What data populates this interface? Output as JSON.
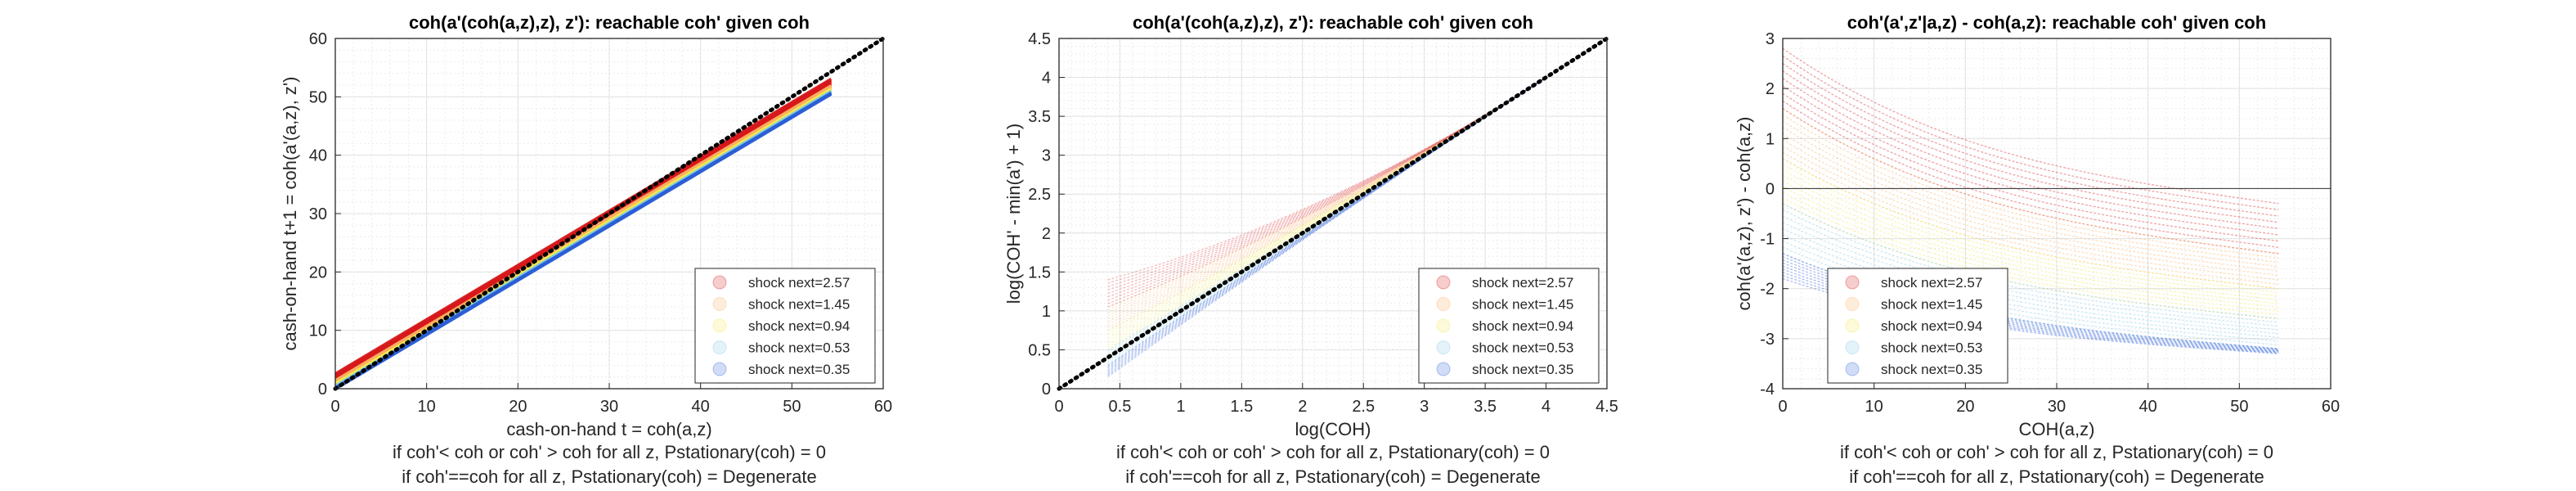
{
  "chart_data": [
    {
      "type": "scatter",
      "title": "coh(a'(coh(a,z),z), z'): reachable coh' given coh",
      "xlabel": "cash-on-hand t = coh(a,z)",
      "ylabel": "cash-on-hand t+1 = coh(a'(a,z), z')",
      "footnote_1": "if coh'< coh or coh' > coh for all z, Pstationary(coh) = 0",
      "footnote_2": "if coh'==coh for all z, Pstationary(coh) = Degenerate",
      "xlim": [
        0,
        60
      ],
      "ylim": [
        0,
        60
      ],
      "xticks": [
        "0",
        "10",
        "20",
        "30",
        "40",
        "50",
        "60"
      ],
      "yticks": [
        "0",
        "10",
        "20",
        "30",
        "40",
        "50",
        "60"
      ],
      "grid": true,
      "legend_position": "bottom-right",
      "reference_line": "45-degree dotted line y = x",
      "x_range_data": [
        0,
        54.3
      ],
      "series": [
        {
          "name": "shock next=2.57",
          "color": "#d7191c",
          "slope": 0.93,
          "intercept": 2.6
        },
        {
          "name": "shock next=1.45",
          "color": "#fdae61",
          "slope": 0.93,
          "intercept": 1.45
        },
        {
          "name": "shock next=0.94",
          "color": "#f2e94e",
          "slope": 0.93,
          "intercept": 0.9
        },
        {
          "name": "shock next=0.53",
          "color": "#7ec8e3",
          "slope": 0.93,
          "intercept": 0.5
        },
        {
          "name": "shock next=0.35",
          "color": "#2c5fd6",
          "slope": 0.93,
          "intercept": 0.2
        }
      ]
    },
    {
      "type": "scatter",
      "title": "coh(a'(coh(a,z),z), z'): reachable coh' given coh",
      "xlabel": "log(COH)",
      "ylabel": "log(COH' - min(a') + 1)",
      "footnote_1": "if coh'< coh or coh' > coh for all z, Pstationary(coh) = 0",
      "footnote_2": "if coh'==coh for all z, Pstationary(coh) = Degenerate",
      "xlim": [
        0,
        4.5
      ],
      "ylim": [
        0,
        4.5
      ],
      "xticks": [
        "0",
        "0.5",
        "1",
        "1.5",
        "2",
        "2.5",
        "3",
        "3.5",
        "4",
        "4.5"
      ],
      "yticks": [
        "0",
        "0.5",
        "1",
        "1.5",
        "2",
        "2.5",
        "3",
        "3.5",
        "4",
        "4.5"
      ],
      "grid": true,
      "legend_position": "bottom-right",
      "reference_line": "45-degree dotted line y = x",
      "x_range_data": [
        0.4,
        4.0
      ],
      "series": [
        {
          "name": "shock next=2.57",
          "color": "#d7191c",
          "y_at_x_min": 1.45
        },
        {
          "name": "shock next=1.45",
          "color": "#fdae61",
          "y_at_x_min": 1.1
        },
        {
          "name": "shock next=0.94",
          "color": "#f2e94e",
          "y_at_x_min": 0.8
        },
        {
          "name": "shock next=0.53",
          "color": "#7ec8e3",
          "y_at_x_min": 0.55
        },
        {
          "name": "shock next=0.35",
          "color": "#2c5fd6",
          "y_at_x_min": 0.35
        }
      ]
    },
    {
      "type": "scatter",
      "title": "coh'(a',z'|a,z) - coh(a,z): reachable coh' given coh",
      "xlabel": "COH(a,z)",
      "ylabel": "coh(a'(a,z), z') - coh(a,z)",
      "footnote_1": "if coh'< coh or coh' > coh for all z, Pstationary(coh) = 0",
      "footnote_2": "if coh'==coh for all z, Pstationary(coh) = Degenerate",
      "xlim": [
        0,
        60
      ],
      "ylim": [
        -4,
        3
      ],
      "xticks": [
        "0",
        "10",
        "20",
        "30",
        "40",
        "50",
        "60"
      ],
      "yticks": [
        "-4",
        "-3",
        "-2",
        "-1",
        "0",
        "1",
        "2",
        "3"
      ],
      "grid": true,
      "legend_position": "bottom-left",
      "reference_line": "horizontal line y = 0",
      "x_range_data": [
        0,
        54.3
      ],
      "series": [
        {
          "name": "shock next=2.57",
          "color": "#d7191c",
          "y_at_x_min": 2.8,
          "y_at_x_max": -0.3
        },
        {
          "name": "shock next=1.45",
          "color": "#fdae61",
          "y_at_x_min": 1.6,
          "y_at_x_max": -1.3
        },
        {
          "name": "shock next=0.94",
          "color": "#f2e94e",
          "y_at_x_min": 0.6,
          "y_at_x_max": -2.0
        },
        {
          "name": "shock next=0.53",
          "color": "#7ec8e3",
          "y_at_x_min": -0.3,
          "y_at_x_max": -2.6
        },
        {
          "name": "shock next=0.35",
          "color": "#2c5fd6",
          "y_at_x_min": -1.3,
          "y_at_x_max": -3.2
        }
      ]
    }
  ]
}
